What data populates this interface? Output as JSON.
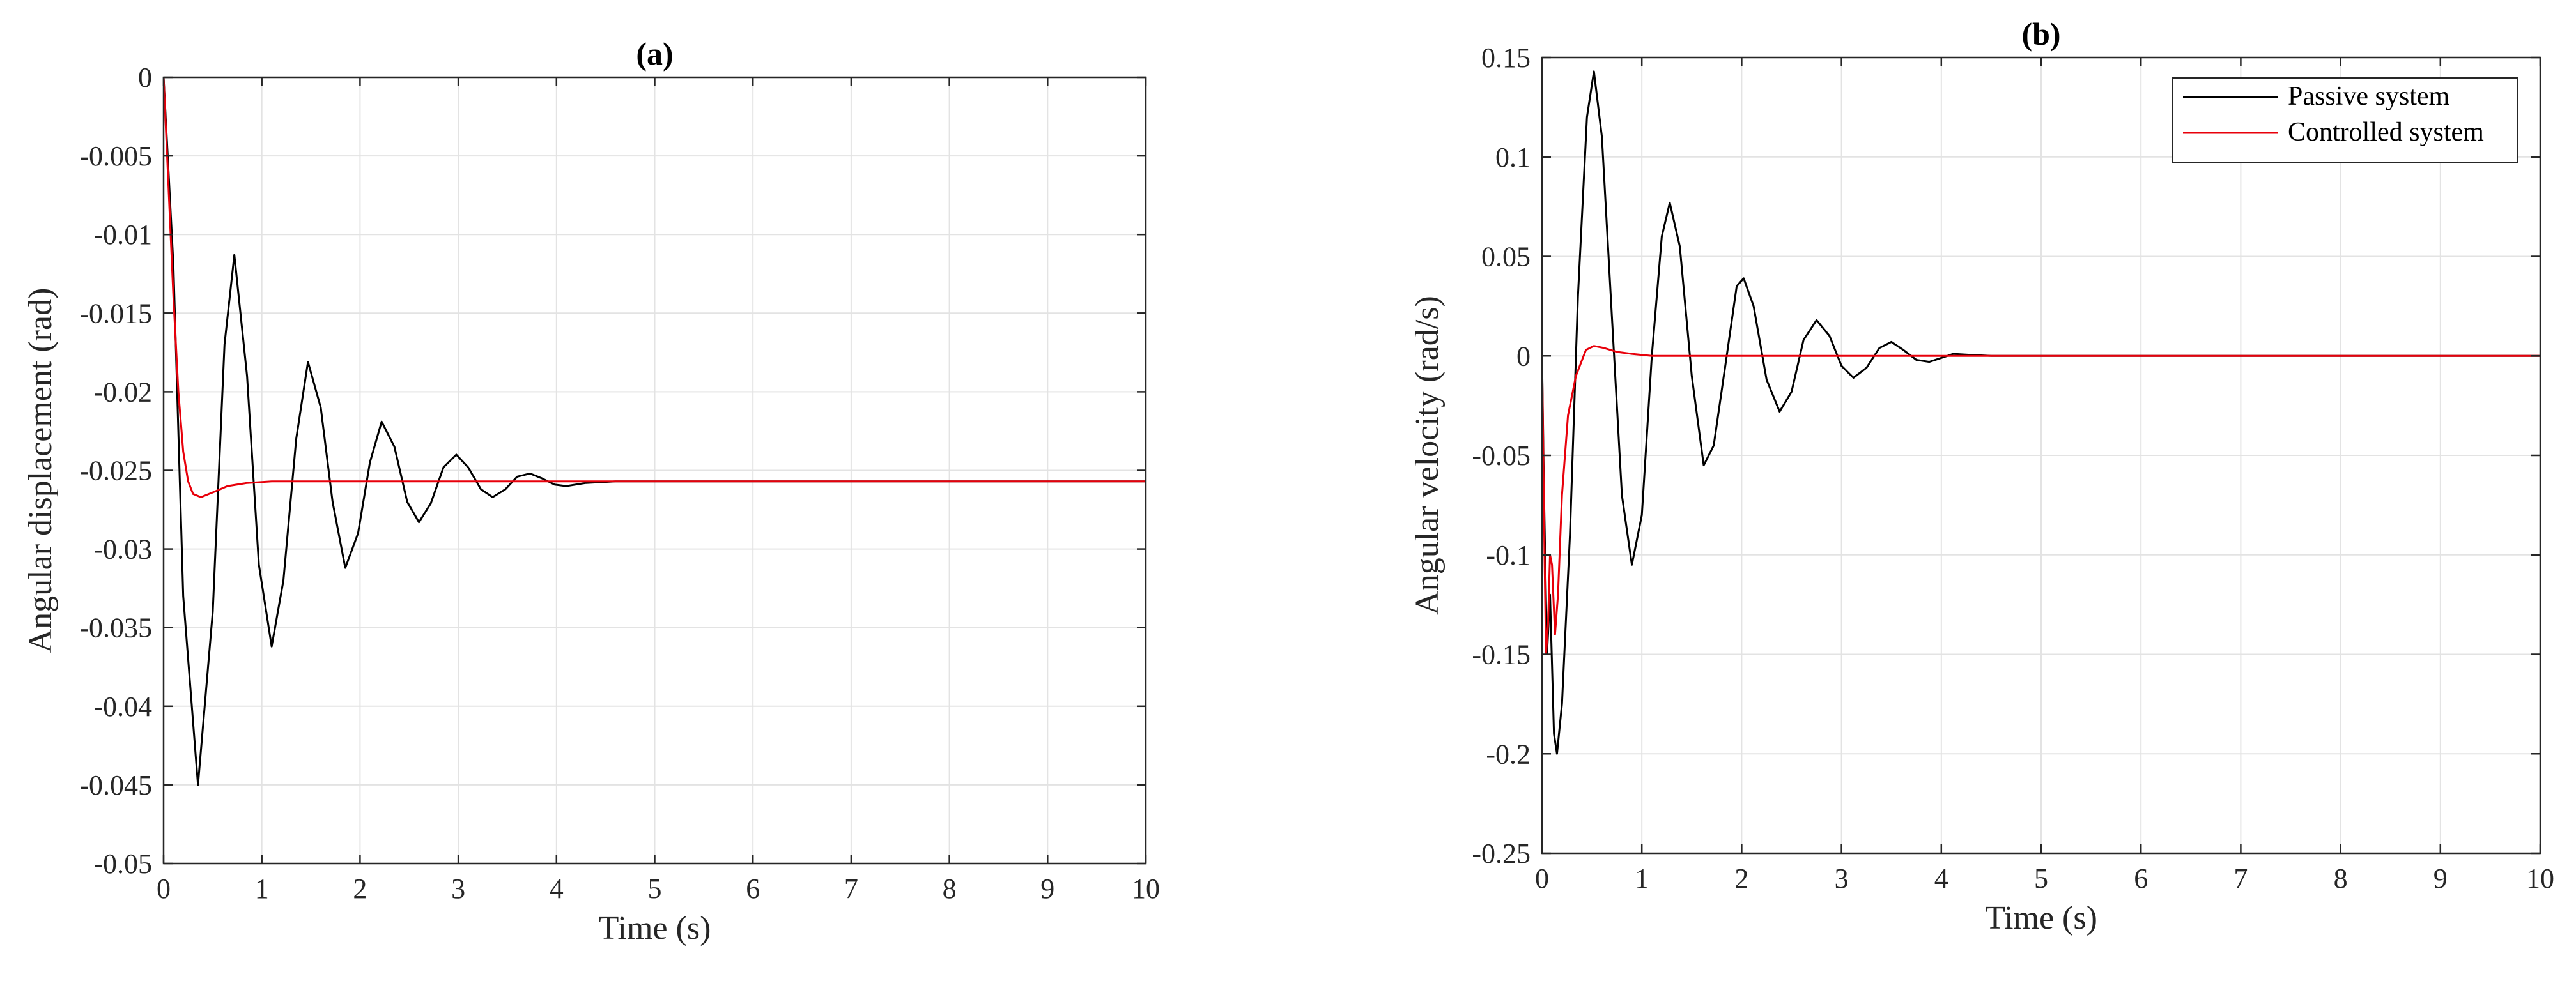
{
  "chart_data": [
    {
      "type": "line",
      "title": "(a)",
      "xlabel": "Time (s)",
      "ylabel": "Angular displacement (rad)",
      "xlim": [
        0,
        10
      ],
      "ylim": [
        -0.05,
        0
      ],
      "xticks": [
        0,
        1,
        2,
        3,
        4,
        5,
        6,
        7,
        8,
        9,
        10
      ],
      "xtick_labels": [
        "0",
        "1",
        "2",
        "3",
        "4",
        "5",
        "6",
        "7",
        "8",
        "9",
        "10"
      ],
      "yticks": [
        0,
        -0.005,
        -0.01,
        -0.015,
        -0.02,
        -0.025,
        -0.03,
        -0.035,
        -0.04,
        -0.045,
        -0.05
      ],
      "ytick_labels": [
        "0",
        "-0.005",
        "-0.01",
        "-0.015",
        "-0.02",
        "-0.025",
        "-0.03",
        "-0.035",
        "-0.04",
        "-0.045",
        "-0.05"
      ],
      "grid": true,
      "legend": null,
      "series": [
        {
          "color": "#000000",
          "points": [
            [
              0,
              0
            ],
            [
              0.1,
              -0.012
            ],
            [
              0.2,
              -0.033
            ],
            [
              0.35,
              -0.045
            ],
            [
              0.5,
              -0.034
            ],
            [
              0.62,
              -0.017
            ],
            [
              0.72,
              -0.0113
            ],
            [
              0.85,
              -0.019
            ],
            [
              0.97,
              -0.031
            ],
            [
              1.1,
              -0.0362
            ],
            [
              1.22,
              -0.032
            ],
            [
              1.35,
              -0.023
            ],
            [
              1.47,
              -0.0181
            ],
            [
              1.6,
              -0.021
            ],
            [
              1.72,
              -0.027
            ],
            [
              1.85,
              -0.0312
            ],
            [
              1.98,
              -0.029
            ],
            [
              2.1,
              -0.0245
            ],
            [
              2.22,
              -0.0219
            ],
            [
              2.35,
              -0.0235
            ],
            [
              2.48,
              -0.027
            ],
            [
              2.6,
              -0.0283
            ],
            [
              2.72,
              -0.0271
            ],
            [
              2.85,
              -0.0248
            ],
            [
              2.98,
              -0.024
            ],
            [
              3.1,
              -0.0248
            ],
            [
              3.23,
              -0.0262
            ],
            [
              3.35,
              -0.0267
            ],
            [
              3.48,
              -0.0262
            ],
            [
              3.6,
              -0.0254
            ],
            [
              3.73,
              -0.0252
            ],
            [
              3.85,
              -0.0255
            ],
            [
              3.98,
              -0.0259
            ],
            [
              4.1,
              -0.026
            ],
            [
              4.3,
              -0.0258
            ],
            [
              4.6,
              -0.0257
            ],
            [
              5,
              -0.0257
            ],
            [
              10,
              -0.0257
            ]
          ]
        },
        {
          "color": "#e8000b",
          "points": [
            [
              0,
              0
            ],
            [
              0.05,
              -0.007
            ],
            [
              0.1,
              -0.014
            ],
            [
              0.15,
              -0.02
            ],
            [
              0.2,
              -0.0238
            ],
            [
              0.25,
              -0.0257
            ],
            [
              0.3,
              -0.0265
            ],
            [
              0.38,
              -0.0267
            ],
            [
              0.5,
              -0.0264
            ],
            [
              0.65,
              -0.026
            ],
            [
              0.85,
              -0.0258
            ],
            [
              1.1,
              -0.0257
            ],
            [
              2,
              -0.0257
            ],
            [
              10,
              -0.0257
            ]
          ]
        }
      ]
    },
    {
      "type": "line",
      "title": "(b)",
      "xlabel": "Time (s)",
      "ylabel": "Angular velocity (rad/s)",
      "xlim": [
        0,
        10
      ],
      "ylim": [
        -0.25,
        0.15
      ],
      "xticks": [
        0,
        1,
        2,
        3,
        4,
        5,
        6,
        7,
        8,
        9,
        10
      ],
      "xtick_labels": [
        "0",
        "1",
        "2",
        "3",
        "4",
        "5",
        "6",
        "7",
        "8",
        "9",
        "10"
      ],
      "yticks": [
        0.15,
        0.1,
        0.05,
        0,
        -0.05,
        -0.1,
        -0.15,
        -0.2,
        -0.25
      ],
      "ytick_labels": [
        "0.15",
        "0.1",
        "0.05",
        "0",
        "-0.05",
        "-0.1",
        "-0.15",
        "-0.2",
        "-0.25"
      ],
      "grid": true,
      "legend": "top-right",
      "series": [
        {
          "name": "Passive system",
          "color": "#000000",
          "points": [
            [
              0,
              0
            ],
            [
              0.02,
              -0.07
            ],
            [
              0.05,
              -0.15
            ],
            [
              0.08,
              -0.12
            ],
            [
              0.12,
              -0.19
            ],
            [
              0.15,
              -0.2
            ],
            [
              0.2,
              -0.175
            ],
            [
              0.28,
              -0.09
            ],
            [
              0.36,
              0.03
            ],
            [
              0.45,
              0.12
            ],
            [
              0.52,
              0.143
            ],
            [
              0.6,
              0.11
            ],
            [
              0.7,
              0.02
            ],
            [
              0.8,
              -0.07
            ],
            [
              0.9,
              -0.105
            ],
            [
              1.0,
              -0.08
            ],
            [
              1.1,
              0.0
            ],
            [
              1.2,
              0.06
            ],
            [
              1.28,
              0.077
            ],
            [
              1.38,
              0.055
            ],
            [
              1.5,
              -0.01
            ],
            [
              1.62,
              -0.055
            ],
            [
              1.72,
              -0.045
            ],
            [
              1.85,
              0.0
            ],
            [
              1.95,
              0.035
            ],
            [
              2.02,
              0.039
            ],
            [
              2.12,
              0.025
            ],
            [
              2.25,
              -0.012
            ],
            [
              2.38,
              -0.028
            ],
            [
              2.5,
              -0.018
            ],
            [
              2.62,
              0.008
            ],
            [
              2.75,
              0.018
            ],
            [
              2.88,
              0.01
            ],
            [
              3.0,
              -0.005
            ],
            [
              3.12,
              -0.011
            ],
            [
              3.25,
              -0.006
            ],
            [
              3.38,
              0.004
            ],
            [
              3.5,
              0.007
            ],
            [
              3.62,
              0.003
            ],
            [
              3.75,
              -0.002
            ],
            [
              3.88,
              -0.003
            ],
            [
              4.0,
              -0.001
            ],
            [
              4.12,
              0.001
            ],
            [
              4.3,
              0.0005
            ],
            [
              4.5,
              0
            ],
            [
              10,
              0
            ]
          ]
        },
        {
          "name": "Controlled system",
          "color": "#e8000b",
          "points": [
            [
              0,
              0
            ],
            [
              0.02,
              -0.08
            ],
            [
              0.04,
              -0.15
            ],
            [
              0.06,
              -0.135
            ],
            [
              0.08,
              -0.1
            ],
            [
              0.1,
              -0.105
            ],
            [
              0.13,
              -0.14
            ],
            [
              0.16,
              -0.12
            ],
            [
              0.2,
              -0.07
            ],
            [
              0.26,
              -0.03
            ],
            [
              0.34,
              -0.01
            ],
            [
              0.44,
              0.003
            ],
            [
              0.52,
              0.005
            ],
            [
              0.62,
              0.004
            ],
            [
              0.75,
              0.002
            ],
            [
              0.9,
              0.001
            ],
            [
              1.1,
              0
            ],
            [
              10,
              0
            ]
          ]
        }
      ]
    }
  ]
}
